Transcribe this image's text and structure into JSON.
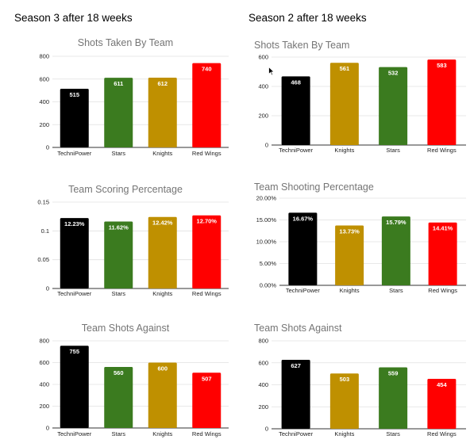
{
  "columns": {
    "left_title": "Season 3 after 18 weeks",
    "right_title": "Season 2 after 18 weeks"
  },
  "colors": {
    "TechniPower": "#000000",
    "Stars": "#3b7b1f",
    "Knights": "#bf9000",
    "Red Wings": "#ff0000",
    "grid": "#e0e0e0",
    "axis": "#333333"
  },
  "icons": [
    "mouse-cursor-icon"
  ],
  "chart_data": [
    {
      "id": "s3-shots-taken",
      "type": "bar",
      "title": "Shots Taken By Team",
      "categories": [
        "TechniPower",
        "Stars",
        "Knights",
        "Red Wings"
      ],
      "values": [
        515,
        611,
        612,
        740
      ],
      "labels": [
        "515",
        "611",
        "612",
        "740"
      ],
      "yticks": [
        "0",
        "200",
        "400",
        "600",
        "800"
      ],
      "ylim": [
        0,
        800
      ],
      "grid": true
    },
    {
      "id": "s2-shots-taken",
      "type": "bar",
      "title": "Shots Taken By Team",
      "categories": [
        "TechniPower",
        "Knights",
        "Stars",
        "Red Wings"
      ],
      "values": [
        468,
        561,
        532,
        583
      ],
      "labels": [
        "468",
        "561",
        "532",
        "583"
      ],
      "yticks": [
        "0",
        "200",
        "400",
        "600"
      ],
      "ylim": [
        0,
        600
      ],
      "grid": true
    },
    {
      "id": "s3-scoring-pct",
      "type": "bar",
      "title": "Team Scoring Percentage",
      "categories": [
        "TechniPower",
        "Stars",
        "Knights",
        "Red Wings"
      ],
      "values": [
        0.1223,
        0.1162,
        0.1242,
        0.127
      ],
      "labels": [
        "12.23%",
        "11.62%",
        "12.42%",
        "12.70%"
      ],
      "yticks": [
        "0",
        "0.05",
        "0.1",
        "0.15"
      ],
      "ylim": [
        0,
        0.15
      ],
      "grid": true
    },
    {
      "id": "s2-shooting-pct",
      "type": "bar",
      "title": "Team Shooting Percentage",
      "categories": [
        "TechniPower",
        "Knights",
        "Stars",
        "Red Wings"
      ],
      "values": [
        0.1667,
        0.1373,
        0.1579,
        0.1441
      ],
      "labels": [
        "16.67%",
        "13.73%",
        "15.79%",
        "14.41%"
      ],
      "yticks": [
        "0.00%",
        "5.00%",
        "10.00%",
        "15.00%",
        "20.00%"
      ],
      "ylim": [
        0,
        0.2
      ],
      "grid": true
    },
    {
      "id": "s3-shots-against",
      "type": "bar",
      "title": "Team Shots Against",
      "categories": [
        "TechniPower",
        "Stars",
        "Knights",
        "Red Wings"
      ],
      "values": [
        755,
        560,
        600,
        507
      ],
      "labels": [
        "755",
        "560",
        "600",
        "507"
      ],
      "yticks": [
        "0",
        "200",
        "400",
        "600",
        "800"
      ],
      "ylim": [
        0,
        800
      ],
      "grid": true
    },
    {
      "id": "s2-shots-against",
      "type": "bar",
      "title": "Team Shots Against",
      "categories": [
        "TechniPower",
        "Knights",
        "Stars",
        "Red Wings"
      ],
      "values": [
        627,
        503,
        559,
        454
      ],
      "labels": [
        "627",
        "503",
        "559",
        "454"
      ],
      "yticks": [
        "0",
        "200",
        "400",
        "600",
        "800"
      ],
      "ylim": [
        0,
        800
      ],
      "grid": true
    }
  ]
}
